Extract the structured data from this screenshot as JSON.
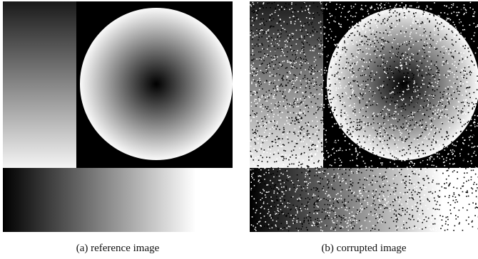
{
  "figure": {
    "subfigures": [
      {
        "caption": "(a) reference image"
      },
      {
        "caption": "(b) corrupted image"
      }
    ]
  }
}
